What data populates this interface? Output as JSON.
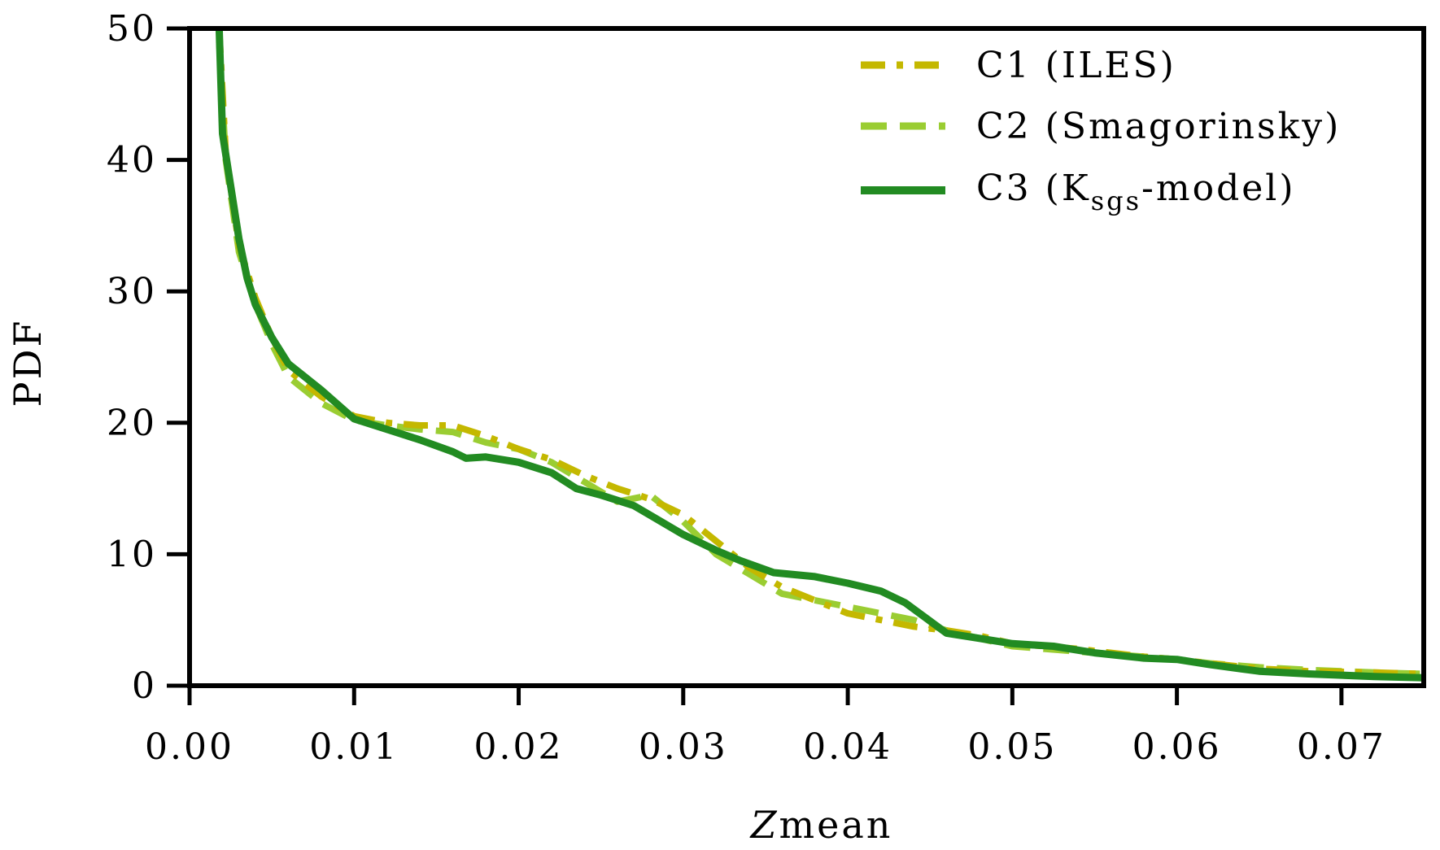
{
  "chart_data": {
    "type": "line",
    "xlabel": "mean",
    "xlabel_symbol": "Z",
    "ylabel": "PDF",
    "xlim": [
      0.0,
      0.075
    ],
    "ylim": [
      0,
      50
    ],
    "xticks": [
      "0.00",
      "0.01",
      "0.02",
      "0.03",
      "0.04",
      "0.05",
      "0.06",
      "0.07"
    ],
    "yticks": [
      "0",
      "10",
      "20",
      "30",
      "40",
      "50"
    ],
    "grid": false,
    "legend_position": "top-right",
    "series": [
      {
        "name": "C1 (ILES)",
        "color": "#c4b800",
        "dash": "dash-dot",
        "points": [
          [
            0.0018,
            50
          ],
          [
            0.0022,
            40.5
          ],
          [
            0.003,
            33.5
          ],
          [
            0.004,
            29.5
          ],
          [
            0.005,
            26.5
          ],
          [
            0.006,
            24
          ],
          [
            0.008,
            22
          ],
          [
            0.01,
            20.5
          ],
          [
            0.012,
            20
          ],
          [
            0.014,
            19.8
          ],
          [
            0.016,
            19.8
          ],
          [
            0.018,
            19
          ],
          [
            0.02,
            18
          ],
          [
            0.022,
            17.2
          ],
          [
            0.024,
            16
          ],
          [
            0.026,
            15
          ],
          [
            0.028,
            14.2
          ],
          [
            0.03,
            13
          ],
          [
            0.032,
            11
          ],
          [
            0.034,
            9
          ],
          [
            0.036,
            7.5
          ],
          [
            0.038,
            6.5
          ],
          [
            0.04,
            5.5
          ],
          [
            0.042,
            5
          ],
          [
            0.044,
            4.5
          ],
          [
            0.046,
            4.2
          ],
          [
            0.048,
            3.8
          ],
          [
            0.05,
            3.2
          ],
          [
            0.052,
            3
          ],
          [
            0.054,
            2.8
          ],
          [
            0.056,
            2.5
          ],
          [
            0.058,
            2.2
          ],
          [
            0.06,
            2
          ],
          [
            0.062,
            1.7
          ],
          [
            0.065,
            1.3
          ],
          [
            0.068,
            1.1
          ],
          [
            0.072,
            1
          ],
          [
            0.075,
            0.9
          ]
        ]
      },
      {
        "name": "C2 (Smagorinsky)",
        "color": "#9acd32",
        "dash": "dashed",
        "points": [
          [
            0.0018,
            49
          ],
          [
            0.0022,
            40
          ],
          [
            0.003,
            33
          ],
          [
            0.004,
            29
          ],
          [
            0.005,
            26
          ],
          [
            0.006,
            23.5
          ],
          [
            0.008,
            21.5
          ],
          [
            0.01,
            20.2
          ],
          [
            0.012,
            19.8
          ],
          [
            0.014,
            19.5
          ],
          [
            0.016,
            19.3
          ],
          [
            0.018,
            18.5
          ],
          [
            0.02,
            18
          ],
          [
            0.022,
            17
          ],
          [
            0.024,
            15.5
          ],
          [
            0.026,
            14
          ],
          [
            0.028,
            14.5
          ],
          [
            0.03,
            12.5
          ],
          [
            0.032,
            10
          ],
          [
            0.034,
            8.5
          ],
          [
            0.036,
            7
          ],
          [
            0.038,
            6.5
          ],
          [
            0.04,
            6
          ],
          [
            0.042,
            5.5
          ],
          [
            0.044,
            5
          ],
          [
            0.046,
            4.2
          ],
          [
            0.048,
            3.6
          ],
          [
            0.05,
            3
          ],
          [
            0.052,
            2.8
          ],
          [
            0.054,
            2.6
          ],
          [
            0.056,
            2.4
          ],
          [
            0.058,
            2.2
          ],
          [
            0.06,
            2
          ],
          [
            0.062,
            1.7
          ],
          [
            0.065,
            1.4
          ],
          [
            0.068,
            1.2
          ],
          [
            0.072,
            1
          ],
          [
            0.075,
            0.9
          ]
        ]
      },
      {
        "name": "C3 (K",
        "name_sub": "sgs",
        "name_suffix": "-model)",
        "color": "#228b22",
        "dash": "solid",
        "points": [
          [
            0.0018,
            50
          ],
          [
            0.002,
            42
          ],
          [
            0.003,
            34
          ],
          [
            0.0035,
            31
          ],
          [
            0.004,
            29
          ],
          [
            0.005,
            26.5
          ],
          [
            0.006,
            24.5
          ],
          [
            0.008,
            22.5
          ],
          [
            0.01,
            20.3
          ],
          [
            0.012,
            19.5
          ],
          [
            0.014,
            18.7
          ],
          [
            0.016,
            17.8
          ],
          [
            0.0168,
            17.3
          ],
          [
            0.018,
            17.4
          ],
          [
            0.02,
            17
          ],
          [
            0.022,
            16.2
          ],
          [
            0.0235,
            15
          ],
          [
            0.025,
            14.5
          ],
          [
            0.027,
            13.7
          ],
          [
            0.03,
            11.5
          ],
          [
            0.032,
            10.3
          ],
          [
            0.0335,
            9.5
          ],
          [
            0.0355,
            8.6
          ],
          [
            0.038,
            8.3
          ],
          [
            0.04,
            7.8
          ],
          [
            0.042,
            7.2
          ],
          [
            0.0435,
            6.3
          ],
          [
            0.046,
            4
          ],
          [
            0.048,
            3.6
          ],
          [
            0.05,
            3.2
          ],
          [
            0.0525,
            3
          ],
          [
            0.055,
            2.5
          ],
          [
            0.058,
            2.1
          ],
          [
            0.06,
            2
          ],
          [
            0.062,
            1.6
          ],
          [
            0.065,
            1.1
          ],
          [
            0.068,
            0.9
          ],
          [
            0.072,
            0.7
          ],
          [
            0.075,
            0.6
          ]
        ]
      }
    ]
  }
}
